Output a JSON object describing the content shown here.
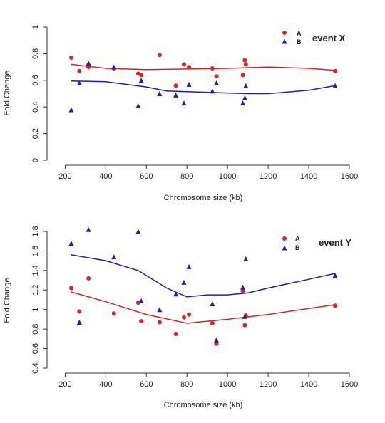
{
  "chart_data": [
    {
      "type": "scatter",
      "annotation": "event X",
      "xlabel": "Chromosome size (kb)",
      "ylabel": "Fold Change",
      "xlim": [
        160,
        1600
      ],
      "ylim": [
        0,
        1
      ],
      "xticks": [
        "200",
        "400",
        "600",
        "800",
        "1000",
        "1200",
        "1400",
        "1600"
      ],
      "yticks": [
        "0",
        "0.2",
        "0.4",
        "0.6",
        "0.8",
        "1"
      ],
      "legend_position": "top-right",
      "series": [
        {
          "name": "A",
          "color": "#d62728",
          "marker": "circle",
          "points": [
            [
              230,
              0.77
            ],
            [
              270,
              0.67
            ],
            [
              315,
              0.7
            ],
            [
              440,
              0.69
            ],
            [
              560,
              0.65
            ],
            [
              575,
              0.64
            ],
            [
              665,
              0.79
            ],
            [
              745,
              0.56
            ],
            [
              785,
              0.72
            ],
            [
              810,
              0.7
            ],
            [
              925,
              0.69
            ],
            [
              945,
              0.63
            ],
            [
              1075,
              0.64
            ],
            [
              1085,
              0.75
            ],
            [
              1090,
              0.72
            ],
            [
              1530,
              0.67
            ]
          ],
          "trend": [
            [
              230,
              0.72
            ],
            [
              400,
              0.69
            ],
            [
              600,
              0.68
            ],
            [
              800,
              0.685
            ],
            [
              1000,
              0.69
            ],
            [
              1200,
              0.7
            ],
            [
              1400,
              0.69
            ],
            [
              1530,
              0.675
            ]
          ]
        },
        {
          "name": "B",
          "color": "#1f1fb4",
          "marker": "triangle",
          "points": [
            [
              230,
              0.38
            ],
            [
              270,
              0.58
            ],
            [
              315,
              0.73
            ],
            [
              440,
              0.7
            ],
            [
              560,
              0.41
            ],
            [
              575,
              0.6
            ],
            [
              665,
              0.5
            ],
            [
              745,
              0.49
            ],
            [
              785,
              0.43
            ],
            [
              810,
              0.57
            ],
            [
              925,
              0.52
            ],
            [
              945,
              0.58
            ],
            [
              1075,
              0.43
            ],
            [
              1085,
              0.47
            ],
            [
              1090,
              0.56
            ],
            [
              1530,
              0.56
            ]
          ],
          "trend": [
            [
              230,
              0.595
            ],
            [
              400,
              0.59
            ],
            [
              600,
              0.55
            ],
            [
              700,
              0.52
            ],
            [
              800,
              0.515
            ],
            [
              900,
              0.51
            ],
            [
              1000,
              0.505
            ],
            [
              1100,
              0.5
            ],
            [
              1200,
              0.5
            ],
            [
              1400,
              0.525
            ],
            [
              1530,
              0.56
            ]
          ]
        }
      ]
    },
    {
      "type": "scatter",
      "annotation": "event Y",
      "xlabel": "Chromosome size (kb)",
      "ylabel": "Fold Change",
      "xlim": [
        160,
        1600
      ],
      "ylim": [
        0.4,
        1.8
      ],
      "xticks": [
        "200",
        "400",
        "600",
        "800",
        "1000",
        "1200",
        "1400",
        "1600"
      ],
      "yticks": [
        "0.4",
        "0.6",
        "0.8",
        "1",
        "1.2",
        "1.4",
        "1.6",
        "1.8"
      ],
      "legend_position": "top-right",
      "series": [
        {
          "name": "A",
          "color": "#d62728",
          "marker": "circle",
          "points": [
            [
              230,
              1.22
            ],
            [
              270,
              0.98
            ],
            [
              315,
              1.32
            ],
            [
              440,
              0.96
            ],
            [
              560,
              1.07
            ],
            [
              575,
              0.88
            ],
            [
              665,
              0.87
            ],
            [
              745,
              0.75
            ],
            [
              785,
              0.92
            ],
            [
              810,
              0.95
            ],
            [
              925,
              0.86
            ],
            [
              945,
              0.65
            ],
            [
              1075,
              1.19
            ],
            [
              1085,
              0.84
            ],
            [
              1090,
              0.94
            ],
            [
              1530,
              1.04
            ]
          ],
          "trend": [
            [
              230,
              1.18
            ],
            [
              400,
              1.08
            ],
            [
              600,
              0.95
            ],
            [
              800,
              0.86
            ],
            [
              1000,
              0.9
            ],
            [
              1200,
              0.95
            ],
            [
              1400,
              1.01
            ],
            [
              1530,
              1.05
            ]
          ]
        },
        {
          "name": "B",
          "color": "#1f1fb4",
          "marker": "triangle",
          "points": [
            [
              230,
              1.68
            ],
            [
              270,
              0.87
            ],
            [
              315,
              1.82
            ],
            [
              440,
              1.54
            ],
            [
              560,
              1.8
            ],
            [
              575,
              1.09
            ],
            [
              665,
              1.0
            ],
            [
              745,
              1.16
            ],
            [
              785,
              1.28
            ],
            [
              810,
              1.44
            ],
            [
              925,
              1.06
            ],
            [
              945,
              0.69
            ],
            [
              1075,
              1.23
            ],
            [
              1085,
              0.93
            ],
            [
              1090,
              1.52
            ],
            [
              1530,
              1.35
            ]
          ],
          "trend": [
            [
              230,
              1.56
            ],
            [
              400,
              1.5
            ],
            [
              560,
              1.4
            ],
            [
              700,
              1.22
            ],
            [
              800,
              1.13
            ],
            [
              900,
              1.15
            ],
            [
              1000,
              1.15
            ],
            [
              1100,
              1.17
            ],
            [
              1200,
              1.22
            ],
            [
              1400,
              1.31
            ],
            [
              1530,
              1.37
            ]
          ]
        }
      ]
    }
  ]
}
